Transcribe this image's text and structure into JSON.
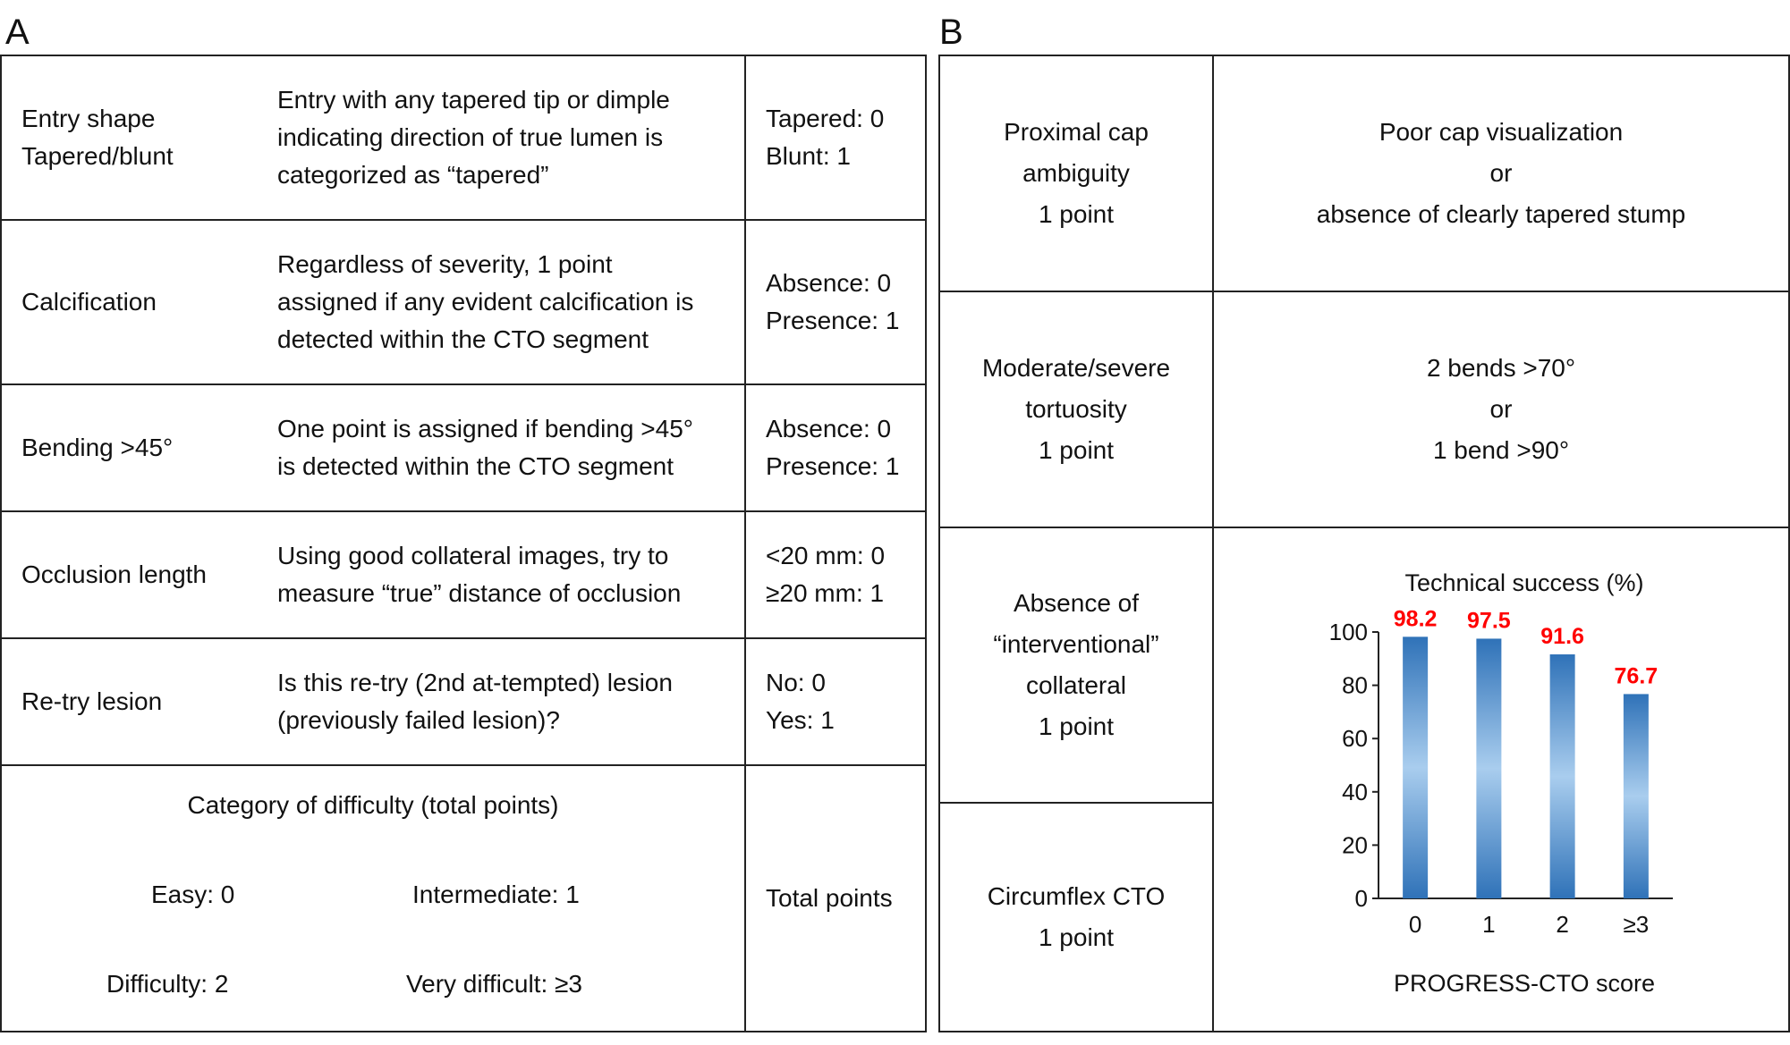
{
  "panel_a": {
    "letter": "A",
    "rows": [
      {
        "label": [
          "Entry shape",
          "Tapered/blunt"
        ],
        "description": [
          "Entry with any tapered tip or dimple",
          "indicating direction of true lumen is",
          "categorized as “tapered”"
        ],
        "points": [
          "Tapered: 0",
          "Blunt: 1"
        ]
      },
      {
        "label": [
          "Calcification"
        ],
        "description": [
          "Regardless of severity, 1 point",
          "assigned if any evident calcification is",
          "detected within the CTO segment"
        ],
        "points": [
          "Absence: 0",
          "Presence: 1"
        ]
      },
      {
        "label": [
          "Bending >45°"
        ],
        "description": [
          "One point is assigned if bending >45°",
          "is detected within the CTO segment"
        ],
        "points": [
          "Absence: 0",
          "Presence: 1"
        ]
      },
      {
        "label": [
          "Occlusion length"
        ],
        "description": [
          "Using good collateral images, try to",
          "measure “true” distance of occlusion"
        ],
        "points": [
          "<20 mm: 0",
          "≥20 mm: 1"
        ]
      },
      {
        "label": [
          "Re-try lesion"
        ],
        "description": [
          "Is this re-try (2nd at-tempted) lesion",
          "(previously failed lesion)?"
        ],
        "points": [
          "No: 0",
          "Yes: 1"
        ]
      }
    ],
    "category_title": "Category of difficulty (total points)",
    "categories": [
      "Easy: 0",
      "Intermediate: 1",
      "Difficulty: 2",
      "Very difficult: ≥3"
    ],
    "total_points": "Total points"
  },
  "panel_b": {
    "letter": "B",
    "rows": [
      {
        "left": [
          "Proximal cap",
          "ambiguity",
          "1 point"
        ],
        "right": [
          "Poor cap visualization",
          "or",
          "absence of clearly tapered stump"
        ]
      },
      {
        "left": [
          "Moderate/severe",
          "tortuosity",
          "1 point"
        ],
        "right": [
          "2 bends >70°",
          "or",
          "1 bend >90°"
        ]
      },
      {
        "left": [
          "Absence of",
          "“interventional”",
          "collateral",
          "1 point"
        ]
      },
      {
        "left": [
          "Circumflex CTO",
          "1 point"
        ]
      }
    ]
  },
  "colors": {
    "bar": "#2f72b8",
    "bar_highlight": "#a9cdee",
    "value_label": "#ff0000"
  },
  "chart_data": {
    "type": "bar",
    "title": "Technical success (%)",
    "xlabel": "PROGRESS-CTO score",
    "ylabel": "",
    "categories": [
      "0",
      "1",
      "2",
      "≥3"
    ],
    "values": [
      98.2,
      97.5,
      91.6,
      76.7
    ],
    "value_labels": [
      "98.2",
      "97.5",
      "91.6",
      "76.7"
    ],
    "ylim": [
      0,
      100
    ],
    "yticks": [
      0,
      20,
      40,
      60,
      80,
      100
    ],
    "grid": false,
    "legend": "none"
  }
}
